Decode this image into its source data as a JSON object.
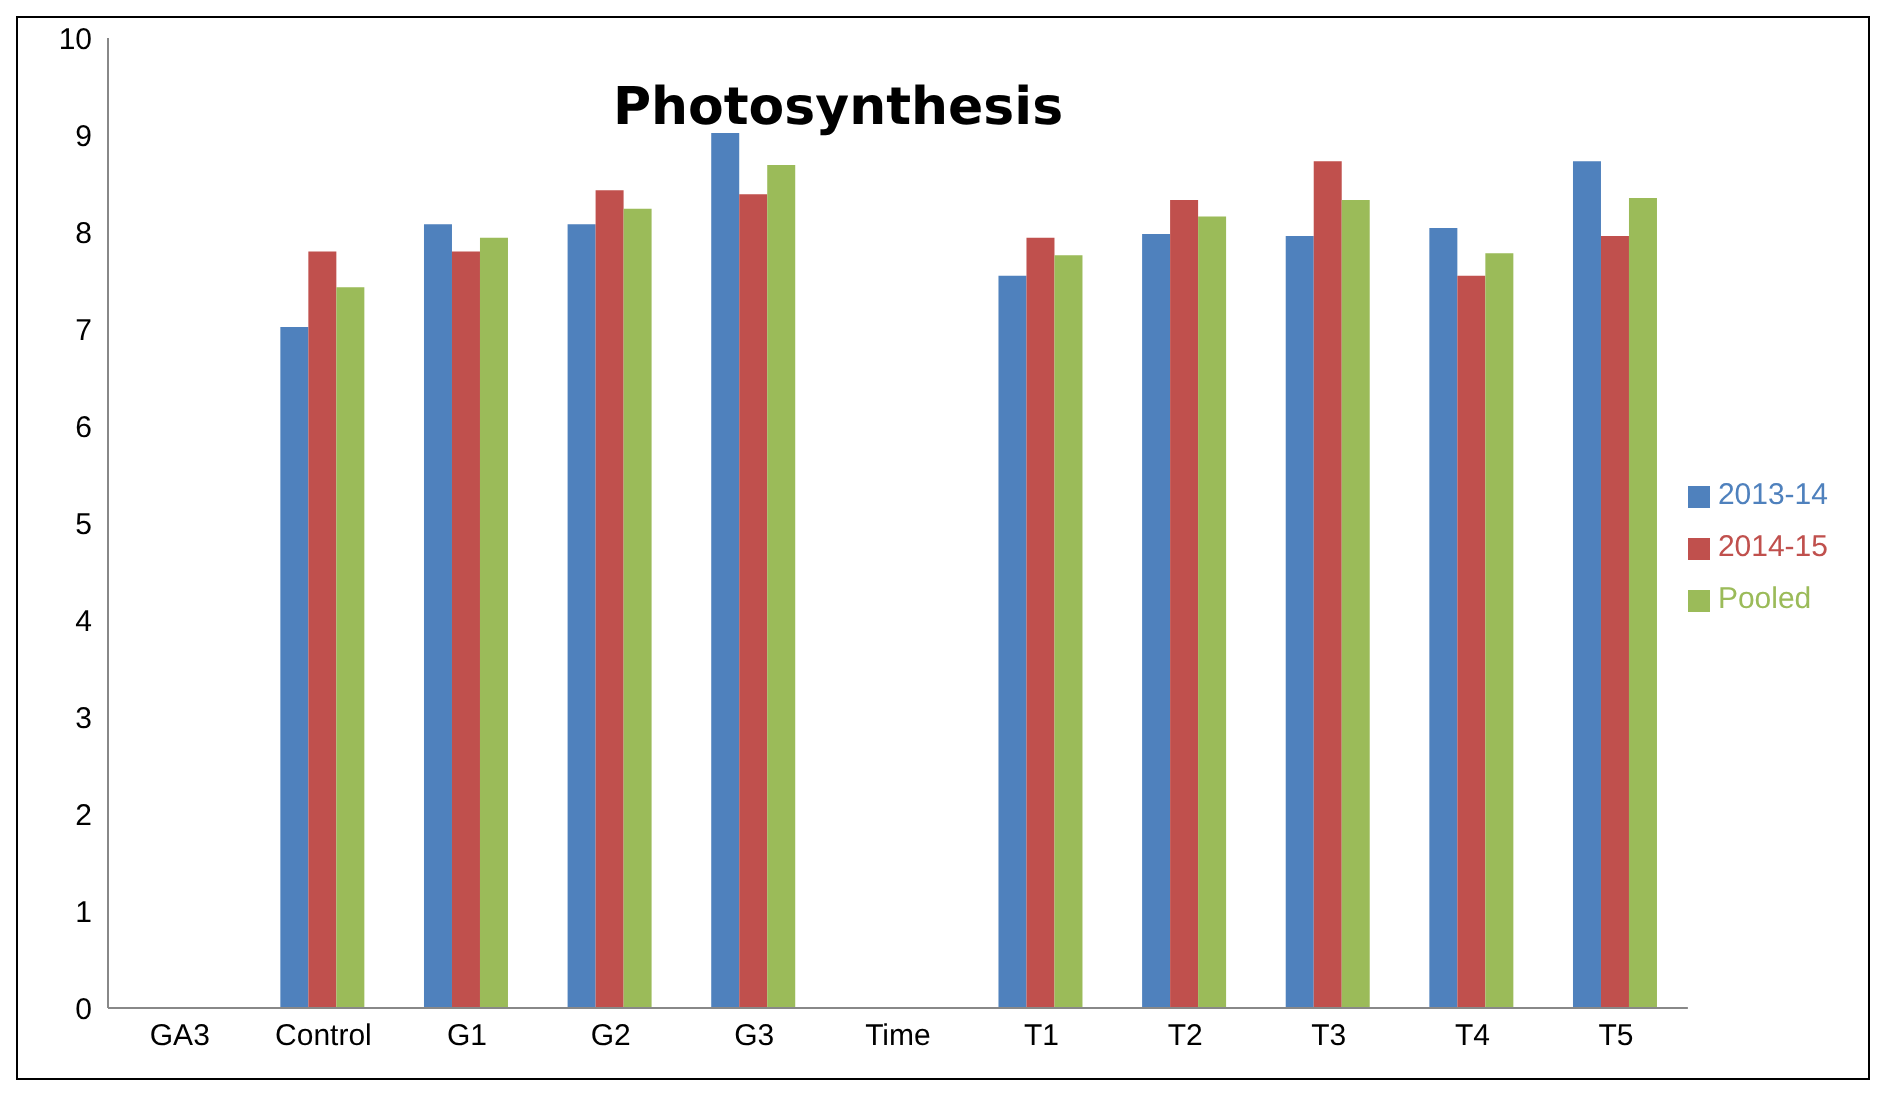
{
  "chart_data": {
    "type": "bar",
    "title": "Photosynthesis",
    "categories": [
      "GA3",
      "Control",
      "G1",
      "G2",
      "G3",
      "Time",
      "T1",
      "T2",
      "T3",
      "T4",
      "T5"
    ],
    "series": [
      {
        "name": "2013-14",
        "color": "#4f81bd",
        "values": [
          null,
          7.02,
          8.08,
          8.08,
          9.02,
          null,
          7.55,
          7.98,
          7.96,
          8.04,
          8.73
        ]
      },
      {
        "name": "2014-15",
        "color": "#c0504d",
        "values": [
          null,
          7.8,
          7.8,
          8.43,
          8.39,
          null,
          7.94,
          8.33,
          8.73,
          7.55,
          7.96
        ]
      },
      {
        "name": "Pooled",
        "color": "#9bbb59",
        "values": [
          null,
          7.43,
          7.94,
          8.24,
          8.69,
          null,
          7.76,
          8.16,
          8.33,
          7.78,
          8.35
        ]
      }
    ],
    "ylim": [
      0,
      10
    ],
    "yticks": [
      0,
      1,
      2,
      3,
      4,
      5,
      6,
      7,
      8,
      9,
      10
    ],
    "grid": false,
    "legend": "right"
  }
}
